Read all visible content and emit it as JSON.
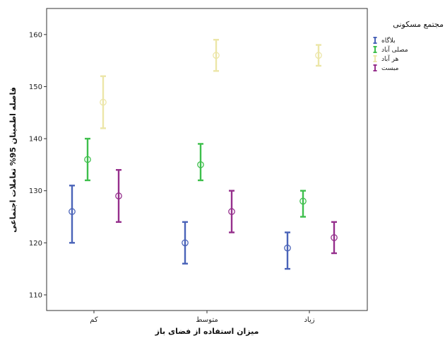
{
  "chart_data": {
    "type": "errorbar",
    "xlabel": "میزان استفاده از فضای باز",
    "ylabel": "فاصله اطمینان 95% تعاملات اجتماعی",
    "categories": [
      "کم",
      "متوسط",
      "زیاد"
    ],
    "ylim": [
      107,
      165
    ],
    "yticks": [
      110,
      120,
      130,
      140,
      150,
      160
    ],
    "legend": {
      "title": "مجتمع مسکونی",
      "position": "right"
    },
    "series": [
      {
        "name": "بلاگاه",
        "color": "#4a63b8",
        "mean": [
          126,
          120,
          119
        ],
        "lower": [
          120,
          116,
          115
        ],
        "upper": [
          131,
          124,
          122
        ]
      },
      {
        "name": "مصلی آباد",
        "color": "#3ebf4c",
        "mean": [
          136,
          135,
          128
        ],
        "lower": [
          132,
          132,
          125
        ],
        "upper": [
          140,
          139,
          130
        ]
      },
      {
        "name": "هر آباد",
        "color": "#ece6a8",
        "mean": [
          147,
          156,
          156
        ],
        "lower": [
          142,
          153,
          154
        ],
        "upper": [
          152,
          159,
          158
        ]
      },
      {
        "name": "مبست",
        "color": "#952f8c",
        "mean": [
          129,
          126,
          121
        ],
        "lower": [
          124,
          122,
          118
        ],
        "upper": [
          134,
          130,
          124
        ]
      }
    ]
  }
}
